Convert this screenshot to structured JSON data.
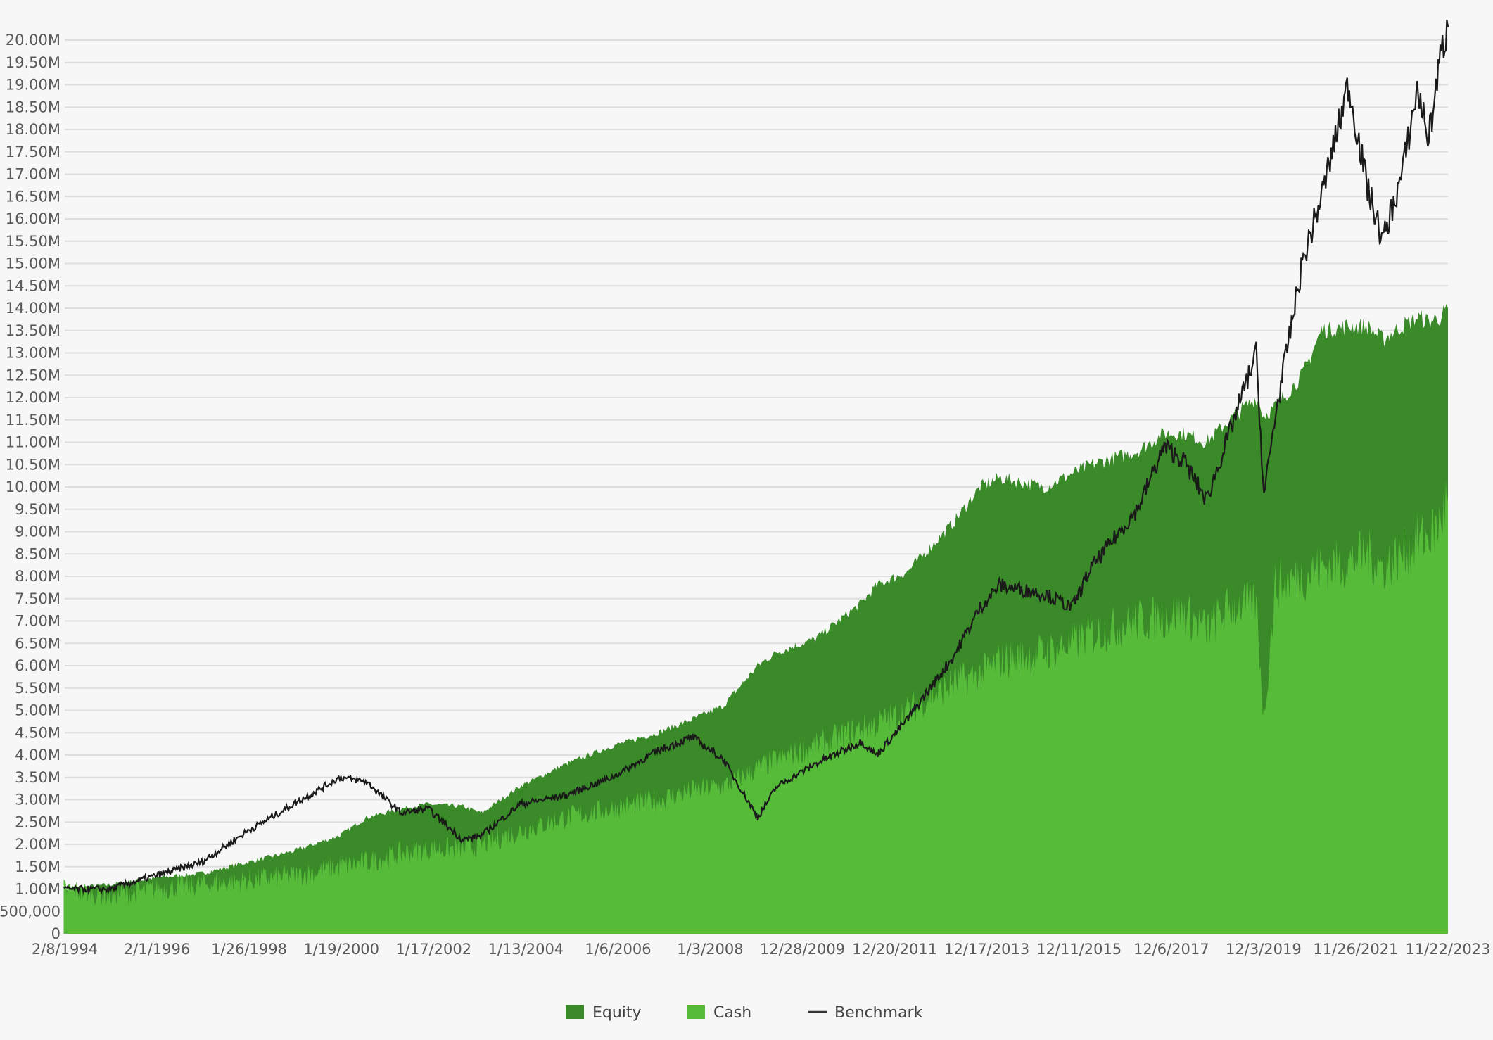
{
  "chart_data": {
    "type": "area",
    "title": "",
    "xlabel": "",
    "ylabel": "",
    "ylim": [
      0,
      20000000
    ],
    "grid": true,
    "legend_position": "bottom-center",
    "colors": {
      "equity": "#3a8a2a",
      "cash": "#55bb38",
      "benchmark": "#1a1a1a",
      "grid": "#dedede",
      "background": "#f7f7f7"
    },
    "y_tick_labels": [
      "0",
      "500,000",
      "1.00M",
      "1.50M",
      "2.00M",
      "2.50M",
      "3.00M",
      "3.50M",
      "4.00M",
      "4.50M",
      "5.00M",
      "5.50M",
      "6.00M",
      "6.50M",
      "7.00M",
      "7.50M",
      "8.00M",
      "8.50M",
      "9.00M",
      "9.50M",
      "10.00M",
      "10.50M",
      "11.00M",
      "11.50M",
      "12.00M",
      "12.50M",
      "13.00M",
      "13.50M",
      "14.00M",
      "14.50M",
      "15.00M",
      "15.50M",
      "16.00M",
      "16.50M",
      "17.00M",
      "17.50M",
      "18.00M",
      "18.50M",
      "19.00M",
      "19.50M",
      "20.00M"
    ],
    "x_tick_labels": [
      "2/8/1994",
      "2/1/1996",
      "1/26/1998",
      "1/19/2000",
      "1/17/2002",
      "1/13/2004",
      "1/6/2006",
      "1/3/2008",
      "12/28/2009",
      "12/20/2011",
      "12/17/2013",
      "12/11/2015",
      "12/6/2017",
      "12/3/2019",
      "11/26/2021",
      "11/22/2023"
    ],
    "x": [
      "1994-02",
      "1995-02",
      "1996-02",
      "1997-02",
      "1998-02",
      "1999-02",
      "2000-02",
      "2000-09",
      "2001-06",
      "2002-01",
      "2002-10",
      "2003-03",
      "2004-01",
      "2005-01",
      "2006-01",
      "2007-01",
      "2007-10",
      "2008-06",
      "2009-03",
      "2009-08",
      "2010-06",
      "2011-06",
      "2011-10",
      "2012-06",
      "2013-06",
      "2014-01",
      "2014-06",
      "2015-06",
      "2016-01",
      "2016-06",
      "2017-06",
      "2018-01",
      "2018-06",
      "2018-12",
      "2019-06",
      "2020-01",
      "2020-03",
      "2020-06",
      "2021-01",
      "2021-06",
      "2022-01",
      "2022-06",
      "2022-10",
      "2023-03",
      "2023-07",
      "2023-10",
      "2024-01",
      "2024-03"
    ],
    "series": [
      {
        "name": "Equity",
        "values": [
          1.0,
          1.1,
          1.25,
          1.35,
          1.6,
          1.85,
          2.2,
          2.6,
          2.8,
          2.9,
          2.85,
          2.7,
          3.3,
          3.8,
          4.2,
          4.5,
          4.8,
          5.1,
          6.0,
          6.3,
          6.6,
          7.4,
          7.8,
          8.1,
          9.2,
          10.0,
          10.2,
          10.0,
          10.3,
          10.5,
          10.8,
          11.2,
          11.2,
          11.0,
          11.5,
          12.0,
          11.6,
          11.8,
          12.5,
          13.5,
          13.6,
          13.6,
          13.3,
          13.6,
          13.8,
          13.7,
          13.8,
          14.0
        ]
      },
      {
        "name": "Cash",
        "values": [
          1.0,
          0.85,
          1.0,
          1.1,
          1.2,
          1.3,
          1.5,
          1.6,
          1.8,
          1.9,
          1.9,
          2.0,
          2.3,
          2.6,
          2.8,
          3.0,
          3.2,
          3.3,
          3.7,
          3.9,
          4.2,
          4.6,
          4.7,
          5.0,
          5.6,
          5.8,
          6.1,
          6.3,
          6.5,
          6.7,
          7.0,
          7.1,
          7.2,
          6.8,
          7.3,
          7.4,
          4.8,
          7.8,
          8.0,
          8.2,
          8.3,
          8.5,
          8.2,
          8.5,
          8.8,
          8.9,
          9.2,
          9.8
        ]
      },
      {
        "name": "Benchmark",
        "values": [
          1.0,
          1.0,
          1.3,
          1.6,
          2.3,
          2.9,
          3.5,
          3.4,
          2.7,
          2.8,
          2.1,
          2.2,
          2.9,
          3.1,
          3.5,
          4.1,
          4.4,
          3.9,
          2.6,
          3.3,
          3.8,
          4.3,
          4.0,
          4.8,
          6.2,
          7.3,
          7.8,
          7.6,
          7.3,
          8.2,
          9.5,
          10.9,
          10.6,
          9.7,
          11.2,
          13.0,
          9.8,
          11.6,
          15.0,
          16.5,
          19.0,
          16.7,
          15.5,
          17.0,
          18.9,
          17.8,
          19.6,
          20.3
        ]
      }
    ]
  },
  "legend": {
    "items": [
      {
        "label": "Equity",
        "color": "#3a8a2a"
      },
      {
        "label": "Cash",
        "color": "#55bb38"
      },
      {
        "label": "Benchmark",
        "color": "#333333"
      }
    ]
  }
}
